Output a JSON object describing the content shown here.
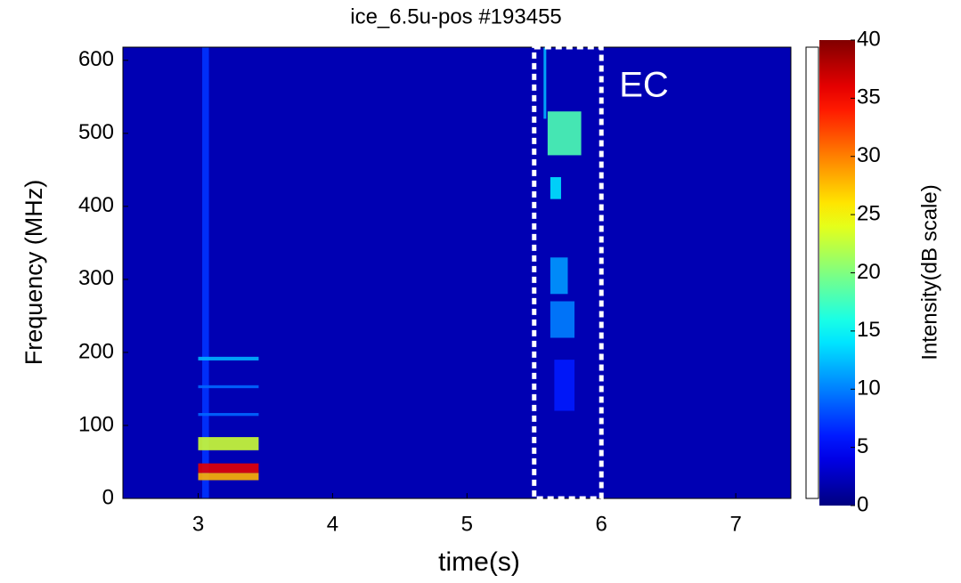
{
  "chart_data": {
    "type": "spectrogram",
    "title": "ice_6.5u-pos #193455",
    "x_label": "time(s)",
    "y_label": "Frequency (MHz)",
    "xlim": [
      2.44,
      7.41
    ],
    "xticks": [
      3,
      4,
      5,
      6,
      7
    ],
    "ylim": [
      0,
      618
    ],
    "yticks": [
      0,
      100,
      200,
      300,
      400,
      500,
      600
    ],
    "colorbar": {
      "label": "Intensity(dB scale)",
      "clim": [
        0,
        40
      ],
      "ticks": [
        0,
        5,
        10,
        15,
        20,
        25,
        30,
        35,
        40
      ],
      "colormap": "jet"
    },
    "background_intensity": 2,
    "features": [
      {
        "t0": 3.03,
        "t1": 3.08,
        "f0": 0,
        "f1": 618,
        "intensity": 7
      },
      {
        "t0": 3.0,
        "t1": 3.45,
        "f0": 25,
        "f1": 35,
        "intensity": 28
      },
      {
        "t0": 3.0,
        "t1": 3.45,
        "f0": 35,
        "f1": 48,
        "intensity": 36
      },
      {
        "t0": 3.0,
        "t1": 3.45,
        "f0": 66,
        "f1": 84,
        "intensity": 23
      },
      {
        "t0": 3.0,
        "t1": 3.45,
        "f0": 189,
        "f1": 194,
        "intensity": 12
      },
      {
        "t0": 3.0,
        "t1": 3.45,
        "f0": 151,
        "f1": 155,
        "intensity": 9
      },
      {
        "t0": 3.0,
        "t1": 3.45,
        "f0": 113,
        "f1": 117,
        "intensity": 9
      },
      {
        "t0": 5.57,
        "t1": 5.59,
        "f0": 520,
        "f1": 618,
        "intensity": 12
      },
      {
        "t0": 5.6,
        "t1": 5.85,
        "f0": 470,
        "f1": 530,
        "intensity": 18
      },
      {
        "t0": 5.62,
        "t1": 5.7,
        "f0": 410,
        "f1": 440,
        "intensity": 14
      },
      {
        "t0": 5.62,
        "t1": 5.75,
        "f0": 280,
        "f1": 330,
        "intensity": 11
      },
      {
        "t0": 5.62,
        "t1": 5.8,
        "f0": 220,
        "f1": 270,
        "intensity": 10
      },
      {
        "t0": 5.65,
        "t1": 5.8,
        "f0": 120,
        "f1": 190,
        "intensity": 6
      }
    ],
    "highlight": {
      "label": "EC",
      "xrange": [
        5.5,
        6.0
      ]
    }
  }
}
